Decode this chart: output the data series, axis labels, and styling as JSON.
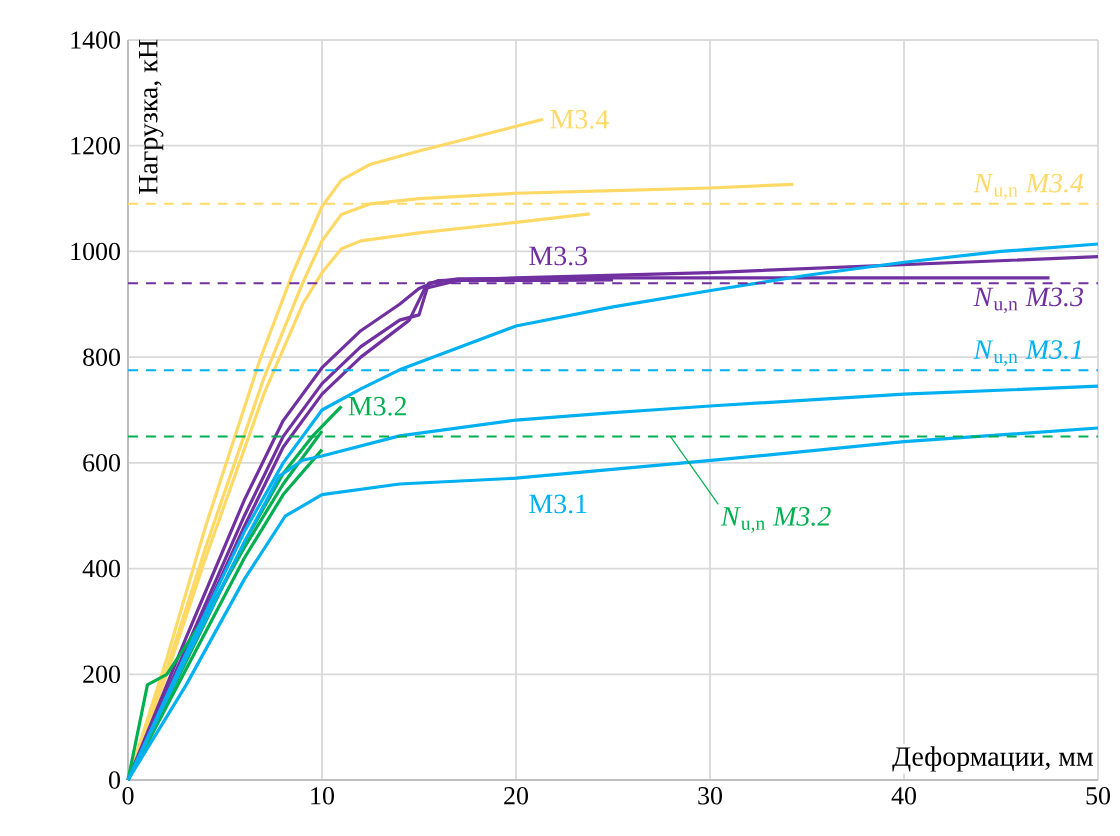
{
  "chart_data": {
    "type": "line",
    "xlabel": "Деформации, мм",
    "ylabel": "Нагрузка, кН",
    "xlim": [
      0,
      50
    ],
    "ylim": [
      0,
      1400
    ],
    "xticks": [
      0,
      10,
      20,
      30,
      40,
      50
    ],
    "yticks": [
      0,
      200,
      400,
      600,
      800,
      1000,
      1200,
      1400
    ],
    "grid": true,
    "marker": "none",
    "line_style": "solid",
    "series": [
      {
        "color": "#ffd966",
        "x": [
          0,
          2,
          4,
          6.8,
          8.5,
          10,
          11,
          12.5,
          15,
          18,
          21.4
        ],
        "values": [
          0,
          230,
          480,
          795,
          960,
          1085,
          1135,
          1165,
          1190,
          1218,
          1250
        ]
      },
      {
        "color": "#ffd966",
        "x": [
          0,
          2,
          4,
          7,
          9,
          10,
          11,
          12.5,
          15,
          20,
          25,
          30,
          34.3
        ],
        "values": [
          0,
          210,
          440,
          760,
          940,
          1020,
          1070,
          1090,
          1100,
          1110,
          1115,
          1120,
          1127
        ]
      },
      {
        "color": "#ffd966",
        "x": [
          0,
          2,
          4,
          7,
          9,
          10,
          11,
          12,
          15,
          20,
          23.8
        ],
        "values": [
          0,
          200,
          420,
          730,
          900,
          960,
          1005,
          1020,
          1035,
          1055,
          1071
        ]
      },
      {
        "color": "#7030a0",
        "x": [
          0,
          3,
          6,
          8,
          10,
          12,
          14,
          15,
          16,
          20,
          30,
          40,
          50
        ],
        "values": [
          0,
          270,
          530,
          680,
          780,
          850,
          900,
          930,
          945,
          950,
          960,
          975,
          990
        ]
      },
      {
        "color": "#7030a0",
        "x": [
          0,
          3,
          6,
          8,
          10,
          12,
          14,
          15,
          15.5,
          17,
          25,
          35,
          47.5
        ],
        "values": [
          0,
          250,
          500,
          650,
          750,
          820,
          870,
          880,
          940,
          948,
          950,
          950,
          950
        ]
      },
      {
        "color": "#7030a0",
        "x": [
          0,
          3,
          6,
          8,
          10,
          12,
          14.5,
          15.3,
          17,
          22,
          25
        ],
        "values": [
          0,
          240,
          480,
          630,
          730,
          800,
          870,
          930,
          945,
          945,
          946
        ]
      },
      {
        "color": "#00b050",
        "x": [
          0,
          2,
          4,
          6,
          8,
          9.5,
          11
        ],
        "values": [
          0,
          150,
          300,
          450,
          580,
          650,
          707
        ]
      },
      {
        "color": "#00b050",
        "x": [
          0,
          1,
          2,
          4,
          6,
          8,
          10
        ],
        "values": [
          0,
          180,
          200,
          310,
          440,
          560,
          660
        ]
      },
      {
        "color": "#00b050",
        "x": [
          0,
          2,
          4,
          6,
          8,
          10
        ],
        "values": [
          0,
          140,
          280,
          420,
          540,
          625
        ]
      },
      {
        "color": "#00b0f0",
        "x": [
          0,
          3,
          6,
          8,
          10,
          12,
          14,
          20,
          25,
          30.2,
          35,
          40.1,
          45,
          50
        ],
        "values": [
          0,
          240,
          470,
          600,
          700,
          740,
          776,
          859,
          895,
          927,
          955,
          980,
          1000,
          1014
        ]
      },
      {
        "color": "#00b0f0",
        "x": [
          0,
          3,
          6,
          7.8,
          9,
          10,
          14,
          20,
          25,
          27,
          30.2,
          40,
          50
        ],
        "values": [
          0,
          230,
          450,
          575,
          605,
          613,
          651,
          681,
          695,
          700,
          708,
          730,
          745
        ]
      },
      {
        "color": "#00b0f0",
        "x": [
          0,
          3,
          6,
          8.1,
          10,
          14,
          20,
          30.2,
          40,
          50
        ],
        "values": [
          0,
          180,
          380,
          499,
          540,
          560,
          571,
          605,
          640,
          666
        ]
      }
    ],
    "ref_lines": [
      {
        "axis": "y",
        "value": 1090,
        "color": "#ffd966",
        "line_style": "dashed",
        "label": "*N*$_{u,n}$ *M3.4*"
      },
      {
        "axis": "y",
        "value": 940,
        "color": "#7030a0",
        "line_style": "dashed",
        "label": "*N*$_{u,n}$ *M3.3*"
      },
      {
        "axis": "y",
        "value": 775,
        "color": "#00b0f0",
        "line_style": "dashed",
        "label": "*N*$_{u,n}$ *M3.1*"
      },
      {
        "axis": "y",
        "value": 650,
        "color": "#00b050",
        "line_style": "dashed",
        "label": "*N*$_{u,n}$ *M3.2*"
      }
    ],
    "annotations": [
      {
        "text": "M3.4",
        "x": 21.4,
        "y": 1250
      },
      {
        "text": "M3.3",
        "x": 20,
        "y": 950
      },
      {
        "text": "M3.2",
        "x": 11,
        "y": 707
      },
      {
        "text": "M3.1",
        "x": 20,
        "y": 571
      }
    ]
  }
}
